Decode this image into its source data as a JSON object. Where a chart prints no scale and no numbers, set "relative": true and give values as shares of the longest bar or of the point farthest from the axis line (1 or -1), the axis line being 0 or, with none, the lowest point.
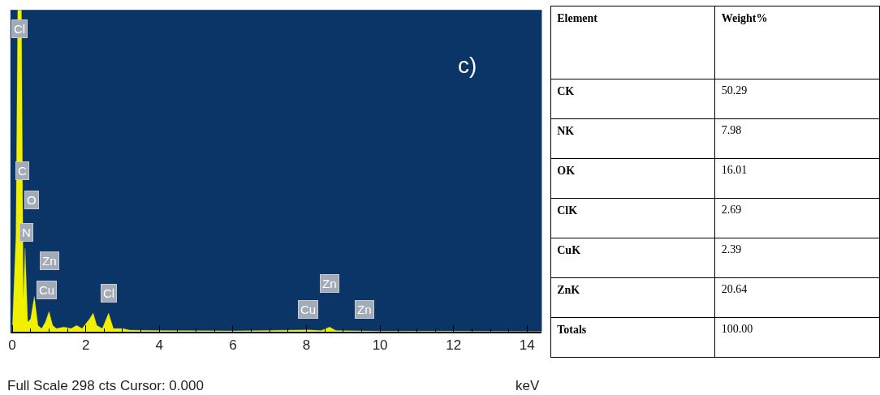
{
  "chart_data": [
    {
      "type": "area",
      "relative": true,
      "xlabel": "keV",
      "color": "#f0f000",
      "x": [
        0,
        0.1,
        0.15,
        0.25,
        0.3,
        0.35,
        0.42,
        0.5,
        0.6,
        0.7,
        0.8,
        0.9,
        1.0,
        1.1,
        1.2,
        1.4,
        1.6,
        1.75,
        1.9,
        2.1,
        2.2,
        2.3,
        2.45,
        2.62,
        2.75,
        3.0,
        3.2,
        4,
        6,
        8.04,
        8.4,
        8.63,
        8.8,
        10,
        12,
        14.4
      ],
      "values": [
        0,
        0.3,
        1,
        1,
        0.1,
        0.26,
        0.03,
        0.04,
        0.11,
        0.02,
        0.01,
        0.03,
        0.063,
        0.02,
        0.01,
        0.015,
        0.01,
        0.02,
        0.01,
        0.04,
        0.058,
        0.02,
        0.01,
        0.058,
        0.01,
        0.01,
        0.005,
        0.004,
        0.003,
        0.006,
        0.004,
        0.015,
        0.004,
        0.002,
        0.002,
        0.001
      ],
      "xlim": [
        -0.05,
        14.4
      ],
      "xticks": [
        0,
        2,
        4,
        6,
        8,
        10,
        12,
        14
      ],
      "grid": false,
      "annotations": [
        {
          "text": "Cl",
          "x": 0.2,
          "y": 0.94
        },
        {
          "text": "C",
          "x": 0.28,
          "y": 0.5
        },
        {
          "text": "O",
          "x": 0.52,
          "y": 0.41
        },
        {
          "text": "N",
          "x": 0.39,
          "y": 0.31
        },
        {
          "text": "Zn",
          "x": 1.01,
          "y": 0.22
        },
        {
          "text": "Cu",
          "x": 0.93,
          "y": 0.13
        },
        {
          "text": "Cl",
          "x": 2.62,
          "y": 0.12
        },
        {
          "text": "Zn",
          "x": 8.63,
          "y": 0.15
        },
        {
          "text": "Cu",
          "x": 8.04,
          "y": 0.07
        },
        {
          "text": "Zn",
          "x": 9.57,
          "y": 0.07
        },
        "c)",
        "Full Scale 298 cts Cursor: 0.000"
      ]
    },
    {
      "type": "other",
      "annotations": [
        "Element",
        "Weight%"
      ],
      "categories": [
        "CK",
        "NK",
        "OK",
        "ClK",
        "CuK",
        "ZnK",
        "Totals"
      ],
      "values": [
        50.29,
        7.98,
        16.01,
        2.69,
        2.39,
        20.64,
        100.0
      ],
      "value_labels": [
        "50.29",
        "7.98",
        "16.01",
        "2.69",
        "2.39",
        "20.64",
        "100.00"
      ]
    }
  ]
}
